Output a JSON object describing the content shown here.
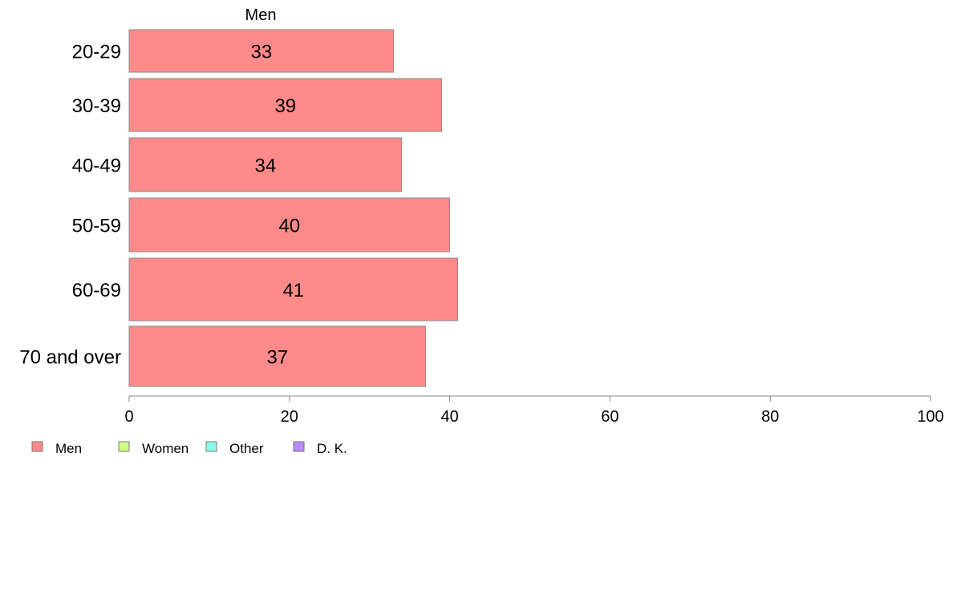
{
  "chart_data": {
    "type": "bar",
    "orientation": "horizontal",
    "categories": [
      "20-29",
      "30-39",
      "40-49",
      "50-59",
      "60-69",
      "70 and over"
    ],
    "series": [
      {
        "name": "Men",
        "values": [
          33,
          39,
          34,
          40,
          41,
          37
        ],
        "color": "#ff8a8a"
      }
    ],
    "xlim": [
      0,
      100
    ],
    "xticks": [
      0,
      20,
      40,
      60,
      80,
      100
    ],
    "grid": false,
    "legend": {
      "placement": "bottom-left",
      "entries": [
        {
          "label": "Men",
          "color": "#ff8a8a"
        },
        {
          "label": "Women",
          "color": "#ccff88"
        },
        {
          "label": "Other",
          "color": "#88ffee"
        },
        {
          "label": "D. K.",
          "color": "#bb88ff"
        }
      ]
    }
  }
}
